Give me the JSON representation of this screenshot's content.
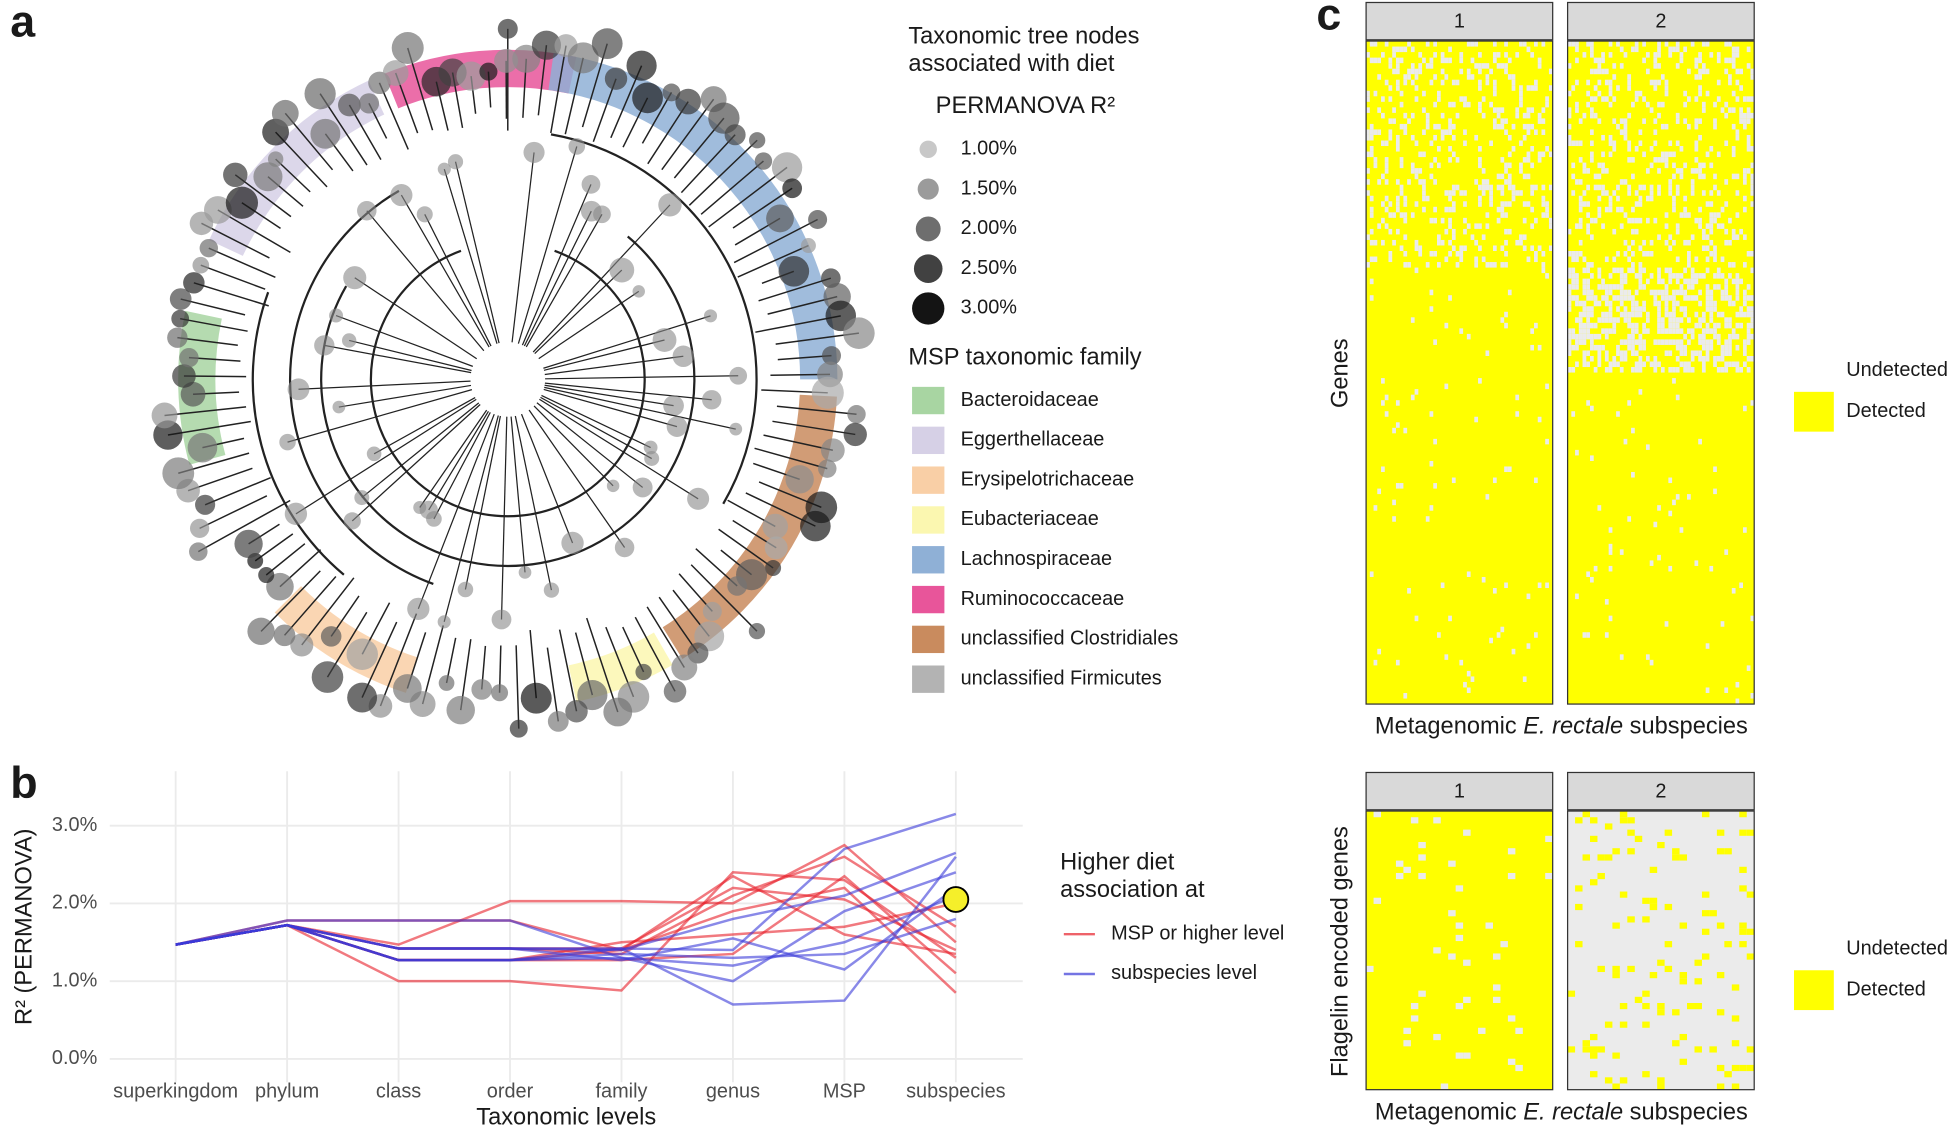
{
  "panel_labels": [
    "a",
    "b",
    "c"
  ],
  "chart_data": [
    {
      "type": "tree",
      "legend_title": [
        "Taxonomic tree nodes",
        "associated with diet"
      ],
      "size_title": "PERMANOVA R²",
      "size_legend": {
        "values": [
          1.0,
          1.5,
          2.0,
          2.5,
          3.0
        ],
        "labels": [
          "1.00%",
          "1.50%",
          "2.00%",
          "2.50%",
          "3.00%"
        ]
      },
      "family_title": "MSP taxonomic family",
      "families": [
        {
          "name": "Bacteroidaceae",
          "color": "#a8d5a2"
        },
        {
          "name": "Eggerthellaceae",
          "color": "#d6d0e6"
        },
        {
          "name": "Erysipelotrichaceae",
          "color": "#f9cfa6"
        },
        {
          "name": "Eubacteriaceae",
          "color": "#fbf7b0"
        },
        {
          "name": "Lachnospiraceae",
          "color": "#8fb0d6"
        },
        {
          "name": "Ruminococcaceae",
          "color": "#e8559a"
        },
        {
          "name": "unclassified Clostridiales",
          "color": "#c98b5e"
        },
        {
          "name": "unclassified Firmicutes",
          "color": "#b3b3b3"
        }
      ]
    },
    {
      "type": "line",
      "categories": [
        "superkingdom",
        "phylum",
        "class",
        "order",
        "family",
        "genus",
        "MSP",
        "subspecies"
      ],
      "x_label": "Taxonomic levels",
      "y_label": "R² (PERMANOVA)",
      "ylim": [
        -0.3,
        3.7
      ],
      "yticks": [
        {
          "value": 0,
          "label": "0.0%"
        },
        {
          "value": 1,
          "label": "1.0%"
        },
        {
          "value": 2,
          "label": "2.0%"
        },
        {
          "value": 3,
          "label": "3.0%"
        }
      ],
      "grid": true,
      "legend_title": [
        "Higher diet",
        "association at"
      ],
      "series": [
        {
          "name": "MSP or higher level",
          "color": "#e8202a",
          "lines": [
            [
              1.47,
              1.72,
              1.0,
              1.0,
              0.88,
              2.4,
              2.3,
              1.3
            ],
            [
              1.47,
              1.72,
              1.47,
              2.03,
              2.03,
              2.0,
              2.75,
              1.5
            ],
            [
              1.47,
              1.72,
              1.27,
              1.27,
              1.4,
              1.9,
              2.2,
              0.85
            ],
            [
              1.47,
              1.72,
              1.27,
              1.27,
              1.27,
              1.35,
              2.35,
              1.1
            ],
            [
              1.47,
              1.72,
              1.42,
              1.42,
              1.42,
              2.2,
              2.05,
              1.4
            ],
            [
              1.47,
              1.72,
              1.27,
              1.27,
              1.5,
              1.6,
              1.7,
              2.0
            ],
            [
              1.47,
              1.72,
              1.42,
              1.42,
              1.35,
              2.1,
              2.6,
              1.7
            ],
            [
              1.47,
              1.78,
              1.78,
              1.78,
              1.4,
              2.35,
              1.6,
              1.35
            ]
          ]
        },
        {
          "name": "subspecies level",
          "color": "#3a3ad8",
          "lines": [
            [
              1.47,
              1.72,
              1.42,
              1.42,
              1.42,
              0.7,
              0.75,
              2.6
            ],
            [
              1.47,
              1.72,
              1.27,
              1.27,
              1.42,
              1.4,
              2.7,
              3.15
            ],
            [
              1.47,
              1.72,
              1.42,
              1.42,
              1.27,
              1.55,
              1.15,
              2.2
            ],
            [
              1.47,
              1.78,
              1.78,
              1.78,
              1.3,
              1.0,
              1.9,
              2.4
            ],
            [
              1.47,
              1.72,
              1.27,
              1.27,
              1.3,
              1.2,
              1.5,
              2.1
            ],
            [
              1.47,
              1.72,
              1.42,
              1.42,
              1.4,
              1.8,
              2.1,
              2.65
            ],
            [
              1.47,
              1.72,
              1.27,
              1.27,
              1.35,
              1.3,
              1.35,
              1.8
            ]
          ]
        }
      ],
      "highlight": {
        "category": "subspecies",
        "value": 2.05,
        "color": "#f5ef2a"
      }
    },
    {
      "type": "heatmap",
      "panels": [
        {
          "facets": [
            "1",
            "2"
          ],
          "y_label": "Genes"
        },
        {
          "facets": [
            "1",
            "2"
          ],
          "y_label": "Flagelin encoded genes"
        }
      ],
      "x_label": [
        "Metagenomic ",
        "E. rectale",
        " subspecies"
      ],
      "legend": [
        {
          "name": "Undetected",
          "color": "#ebebeb"
        },
        {
          "name": "Detected",
          "color": "#ffff00"
        }
      ]
    }
  ]
}
